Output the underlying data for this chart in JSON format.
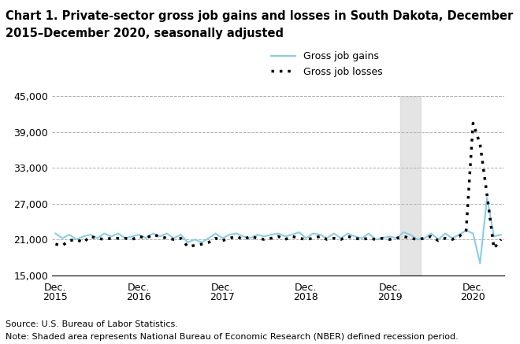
{
  "title_line1": "Chart 1. Private-sector gross job gains and losses in South Dakota, December",
  "title_line2": "2015–December 2020, seasonally adjusted",
  "title_fontsize": 10.5,
  "ylim": [
    15000,
    45000
  ],
  "yticks": [
    15000,
    21000,
    27000,
    33000,
    39000,
    45000
  ],
  "source_text": "Source: U.S. Bureau of Labor Statistics.",
  "note_text": "Note: Shaded area represents National Bureau of Economic Research (NBER) defined recession period.",
  "background_color": "#ffffff",
  "shade_color": "#d3d3d3",
  "gains_color": "#87CEEB",
  "losses_color": "#000000",
  "gains_label": "Gross job gains",
  "losses_label": "Gross job losses",
  "shade_x_start": 49.5,
  "shade_x_end": 52.5,
  "xtick_positions": [
    0,
    12,
    24,
    36,
    48,
    60
  ],
  "xtick_years": [
    "2015",
    "2016",
    "2017",
    "2018",
    "2019",
    "2020"
  ],
  "gains": [
    22000,
    21200,
    21800,
    21000,
    21500,
    21800,
    21200,
    22000,
    21500,
    22000,
    21200,
    21500,
    21800,
    21200,
    22000,
    21500,
    22000,
    21200,
    21800,
    20500,
    21000,
    20500,
    21200,
    22000,
    21200,
    21800,
    22000,
    21500,
    21200,
    21800,
    21500,
    21800,
    22000,
    21500,
    21800,
    22200,
    21200,
    22000,
    21800,
    21200,
    22000,
    21200,
    22000,
    21500,
    21200,
    22000,
    21000,
    21200,
    21500,
    21200,
    22200,
    21800,
    21000,
    21200,
    22000,
    21000,
    22000,
    21200,
    21800,
    22500,
    22000,
    17000,
    28000,
    21500,
    21800
  ],
  "losses": [
    20200,
    20000,
    20800,
    21000,
    20500,
    21500,
    21200,
    21000,
    21200,
    21200,
    21200,
    21000,
    21500,
    21200,
    21800,
    21500,
    21200,
    21000,
    21200,
    19800,
    20000,
    20200,
    20500,
    21200,
    20800,
    21200,
    21500,
    21000,
    21500,
    21200,
    21000,
    21200,
    21500,
    21000,
    21500,
    21200,
    21000,
    21200,
    21500,
    21000,
    21200,
    21000,
    21500,
    21200,
    21000,
    21200,
    21000,
    21200,
    21000,
    21200,
    21500,
    21200,
    21000,
    21200,
    21500,
    20800,
    21200,
    21000,
    21500,
    22500,
    40500,
    37000,
    28500,
    19500,
    21000
  ],
  "n_points": 65
}
